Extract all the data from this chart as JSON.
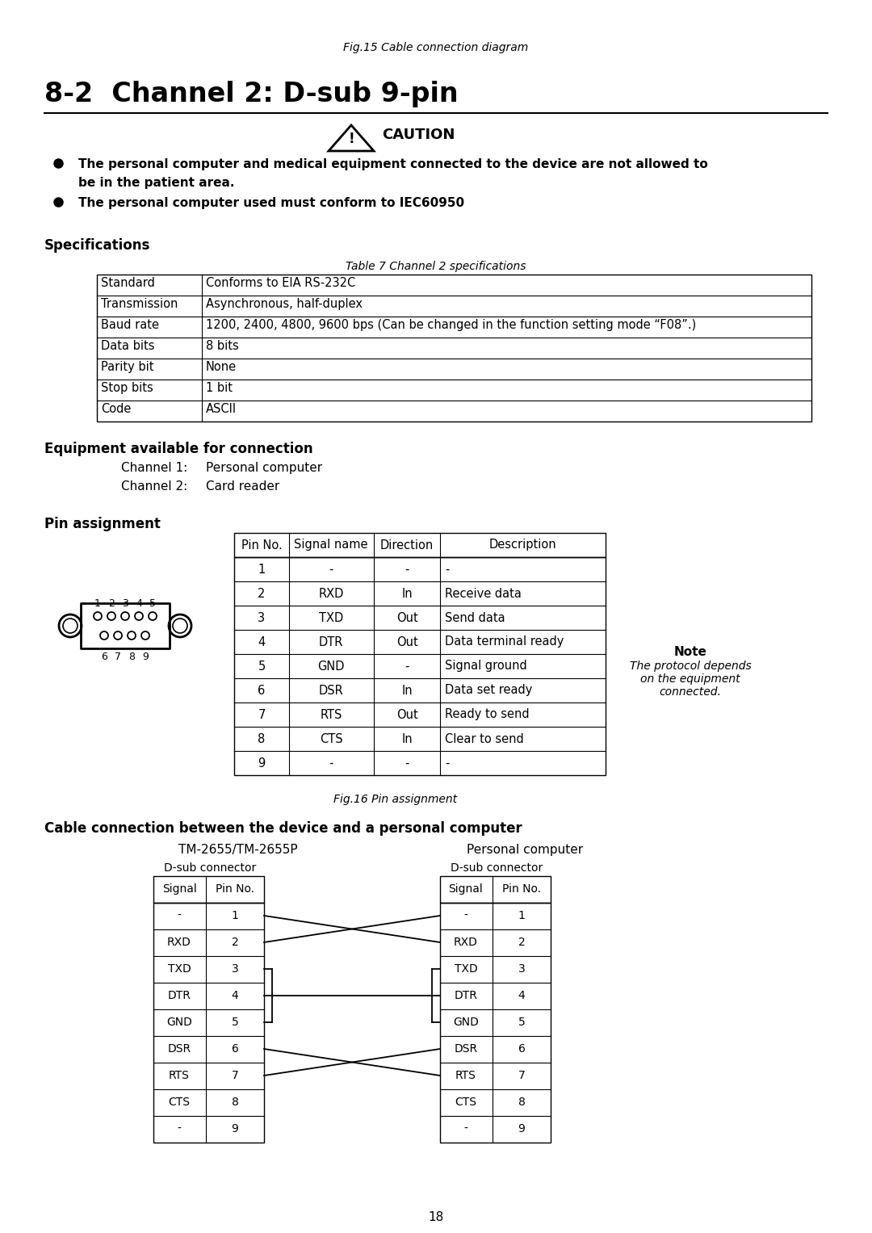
{
  "fig_caption_top": "Fig.15 Cable connection diagram",
  "section_title": "8-2  Channel 2: D-sub 9-pin",
  "caution_title": "CAUTION",
  "specs_section": "Specifications",
  "table7_caption": "Table 7 Channel 2 specifications",
  "specs_table": [
    [
      "Standard",
      "Conforms to EIA RS-232C"
    ],
    [
      "Transmission",
      "Asynchronous, half-duplex"
    ],
    [
      "Baud rate",
      "1200, 2400, 4800, 9600 bps (Can be changed in the function setting mode “F08”.)"
    ],
    [
      "Data bits",
      "8 bits"
    ],
    [
      "Parity bit",
      "None"
    ],
    [
      "Stop bits",
      "1 bit"
    ],
    [
      "Code",
      "ASCII"
    ]
  ],
  "equip_section": "Equipment available for connection",
  "equip_lines": [
    [
      "Channel 1:",
      "Personal computer"
    ],
    [
      "Channel 2:",
      "Card reader"
    ]
  ],
  "pin_section": "Pin assignment",
  "pin_table_headers": [
    "Pin No.",
    "Signal name",
    "Direction",
    "Description"
  ],
  "pin_table_rows": [
    [
      "1",
      "-",
      "-",
      "-"
    ],
    [
      "2",
      "RXD",
      "In",
      "Receive data"
    ],
    [
      "3",
      "TXD",
      "Out",
      "Send data"
    ],
    [
      "4",
      "DTR",
      "Out",
      "Data terminal ready"
    ],
    [
      "5",
      "GND",
      "-",
      "Signal ground"
    ],
    [
      "6",
      "DSR",
      "In",
      "Data set ready"
    ],
    [
      "7",
      "RTS",
      "Out",
      "Ready to send"
    ],
    [
      "8",
      "CTS",
      "In",
      "Clear to send"
    ],
    [
      "9",
      "-",
      "-",
      "-"
    ]
  ],
  "note_title": "Note",
  "note_text": "The protocol depends\non the equipment\nconnected.",
  "fig16_caption": "Fig.16 Pin assignment",
  "cable_section": "Cable connection between the device and a personal computer",
  "cable_left_title": "TM-2655/TM-2655P",
  "cable_right_title": "Personal computer",
  "cable_left_sub": "D-sub connector",
  "cable_right_sub": "D-sub connector",
  "cable_left_rows": [
    [
      "-",
      "1"
    ],
    [
      "RXD",
      "2"
    ],
    [
      "TXD",
      "3"
    ],
    [
      "DTR",
      "4"
    ],
    [
      "GND",
      "5"
    ],
    [
      "DSR",
      "6"
    ],
    [
      "RTS",
      "7"
    ],
    [
      "CTS",
      "8"
    ],
    [
      "-",
      "9"
    ]
  ],
  "cable_right_rows": [
    [
      "-",
      "1"
    ],
    [
      "RXD",
      "2"
    ],
    [
      "TXD",
      "3"
    ],
    [
      "DTR",
      "4"
    ],
    [
      "GND",
      "5"
    ],
    [
      "DSR",
      "6"
    ],
    [
      "RTS",
      "7"
    ],
    [
      "CTS",
      "8"
    ],
    [
      "-",
      "9"
    ]
  ],
  "page_number": "18",
  "bg_color": "#ffffff"
}
